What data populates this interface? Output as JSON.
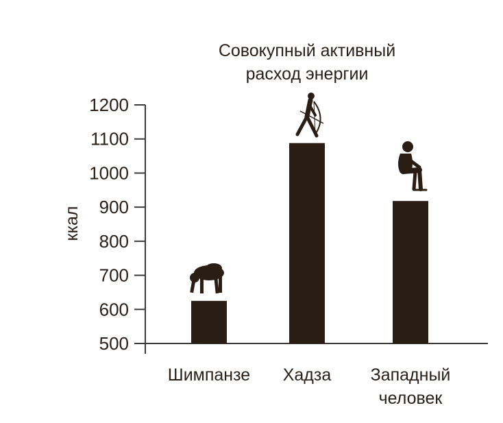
{
  "chart_data": {
    "type": "bar",
    "title": "Совокупный активный расход энергии",
    "title_lines": [
      "Совокупный активный",
      "расход энергии"
    ],
    "ylabel": "ккал",
    "xlabel": "",
    "ylim": [
      500,
      1200
    ],
    "yticks": [
      500,
      600,
      700,
      800,
      900,
      1000,
      1100,
      1200
    ],
    "categories": [
      "Шимпанзе",
      "Хадза",
      "Западный человек"
    ],
    "category_lines": [
      [
        "Шимпанзе"
      ],
      [
        "Хадза"
      ],
      [
        "Западный",
        "человек"
      ]
    ],
    "values": [
      625,
      1088,
      918
    ],
    "bar_color": "#2a1d14",
    "axis_color": "#3a3a3a",
    "grid": false,
    "legend": "none",
    "icons": [
      "chimpanzee-icon",
      "hadza-walker-icon",
      "seated-man-icon"
    ]
  }
}
